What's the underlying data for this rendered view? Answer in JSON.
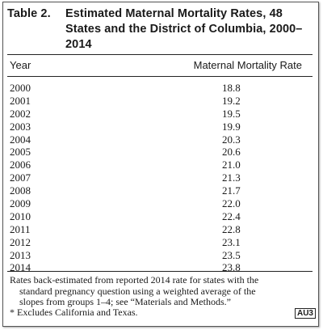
{
  "table": {
    "label": "Table 2.",
    "title": "Estimated Maternal Mortality Rates, 48 States and the District of Columbia, 2000–2014",
    "col_year": "Year",
    "col_rate": "Maternal Mortality Rate",
    "rows": [
      {
        "year": "2000",
        "rate": "18.8"
      },
      {
        "year": "2001",
        "rate": "19.2"
      },
      {
        "year": "2002",
        "rate": "19.5"
      },
      {
        "year": "2003",
        "rate": "19.9"
      },
      {
        "year": "2004",
        "rate": "20.3"
      },
      {
        "year": "2005",
        "rate": "20.6"
      },
      {
        "year": "2006",
        "rate": "21.0"
      },
      {
        "year": "2007",
        "rate": "21.3"
      },
      {
        "year": "2008",
        "rate": "21.7"
      },
      {
        "year": "2009",
        "rate": "22.0"
      },
      {
        "year": "2010",
        "rate": "22.4"
      },
      {
        "year": "2011",
        "rate": "22.8"
      },
      {
        "year": "2012",
        "rate": "23.1"
      },
      {
        "year": "2013",
        "rate": "23.5"
      },
      {
        "year": "2014",
        "rate": "23.8"
      }
    ],
    "note_line1": "Rates back-estimated from reported 2014 rate for states with the",
    "note_line2": "standard pregnancy question using a weighted average of the",
    "note_line3": "slopes from groups 1–4; see “Materials and Methods.”",
    "footnote": "* Excludes California and Texas.",
    "query_tag": "AU3"
  }
}
